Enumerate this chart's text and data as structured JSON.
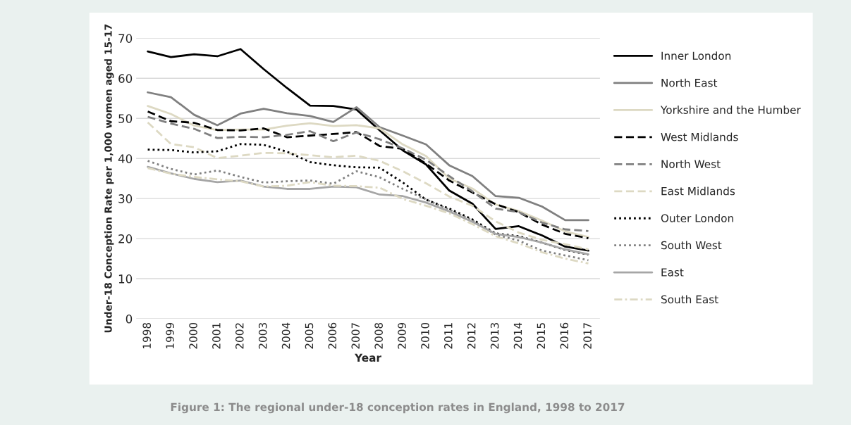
{
  "chart_data": {
    "type": "line",
    "ylabel": "Under-18 Conception Rate per 1,000 women aged 15-17",
    "xlabel": "Year",
    "categories": [
      "1998",
      "1999",
      "2000",
      "2001",
      "2002",
      "2003",
      "2004",
      "2005",
      "2006",
      "2007",
      "2008",
      "2009",
      "2010",
      "2011",
      "2012",
      "2013",
      "2014",
      "2015",
      "2016",
      "2017"
    ],
    "series": [
      {
        "name": "Inner London",
        "color": "#000000",
        "line_style": "solid",
        "values": [
          66.7,
          65.3,
          66,
          65.5,
          67.3,
          62.3,
          57.6,
          53.2,
          53.1,
          52.2,
          47,
          42,
          38.5,
          32,
          28.7,
          22.4,
          23.1,
          20.8,
          18,
          17
        ]
      },
      {
        "name": "North East",
        "color": "#808080",
        "line_style": "solid",
        "values": [
          56.5,
          55.3,
          50.9,
          48.3,
          51.2,
          52.4,
          51.3,
          50.6,
          49.1,
          52.8,
          47.8,
          45.7,
          43.5,
          38.3,
          35.6,
          30.6,
          30.2,
          28,
          24.6,
          24.6
        ]
      },
      {
        "name": "Yorkshire and the Humber",
        "color": "#ddd9c3",
        "line_style": "solid",
        "values": [
          53.1,
          51.1,
          48.2,
          47.1,
          47.2,
          47.2,
          48.2,
          48.8,
          48.1,
          48.3,
          47.5,
          43.5,
          40.6,
          35,
          32.5,
          28.5,
          26.9,
          24.5,
          21.8,
          20.4
        ]
      },
      {
        "name": "West Midlands",
        "color": "#000000",
        "line_style": "dashed",
        "values": [
          51.7,
          49.3,
          48.9,
          47.1,
          47,
          47.5,
          45.3,
          45.7,
          46.1,
          46.6,
          43.1,
          42.4,
          38.7,
          34.5,
          31.5,
          28.6,
          26.6,
          23.5,
          21.2,
          20.1
        ]
      },
      {
        "name": "North West",
        "color": "#808080",
        "line_style": "dashed",
        "values": [
          50.4,
          48.7,
          47.4,
          45.1,
          45.4,
          45.3,
          45.9,
          46.8,
          44.3,
          46.5,
          44.8,
          42.5,
          39.7,
          35.6,
          31.8,
          27.5,
          26.6,
          24,
          22.3,
          21.9
        ]
      },
      {
        "name": "East Midlands",
        "color": "#ddd9c3",
        "line_style": "dashed",
        "values": [
          49,
          43.6,
          42.8,
          40.1,
          40.7,
          41.4,
          41.3,
          40.8,
          40.3,
          40.7,
          39.4,
          36.8,
          33.8,
          30.5,
          28.2,
          24.3,
          21.5,
          19.7,
          18.6,
          17.3
        ]
      },
      {
        "name": "Outer London",
        "color": "#000000",
        "line_style": "dotted",
        "values": [
          42.2,
          42.1,
          41.5,
          41.8,
          43.6,
          43.4,
          41.7,
          39.1,
          38.3,
          37.8,
          37.7,
          34,
          29.7,
          27.5,
          24.8,
          21.3,
          20.6,
          19,
          17.2,
          16
        ]
      },
      {
        "name": "South West",
        "color": "#808080",
        "line_style": "dotted",
        "values": [
          39.4,
          37.4,
          36,
          37,
          35.4,
          34,
          34.3,
          34.5,
          33.7,
          36.8,
          35.3,
          32.4,
          29.8,
          27.2,
          24.5,
          21,
          19.5,
          17,
          15.8,
          14.6
        ]
      },
      {
        "name": "East",
        "color": "#a6a6a6",
        "line_style": "solid",
        "values": [
          37.9,
          36.3,
          34.9,
          34.1,
          34.5,
          33,
          32.4,
          32.4,
          33,
          32.8,
          31,
          30.6,
          29,
          26.8,
          24.2,
          21.2,
          20.4,
          19,
          17.3,
          16.1
        ]
      },
      {
        "name": "South East",
        "color": "#ddd9c3",
        "line_style": "dashdot",
        "values": [
          37.6,
          36.2,
          35.4,
          34.8,
          34.3,
          33,
          33.2,
          34.1,
          33.2,
          33.1,
          32.7,
          29.9,
          28.2,
          26.3,
          23.6,
          20.6,
          18.8,
          16.6,
          15,
          13.8
        ]
      }
    ],
    "ylim": [
      0,
      70
    ],
    "yticks": [
      0,
      10,
      20,
      30,
      40,
      50,
      60,
      70
    ],
    "grid": "y",
    "legend": "right",
    "marker": "none",
    "annotations": [
      "Figure 1: The regional under-18 conception rates in England, 1998 to 2017"
    ]
  }
}
